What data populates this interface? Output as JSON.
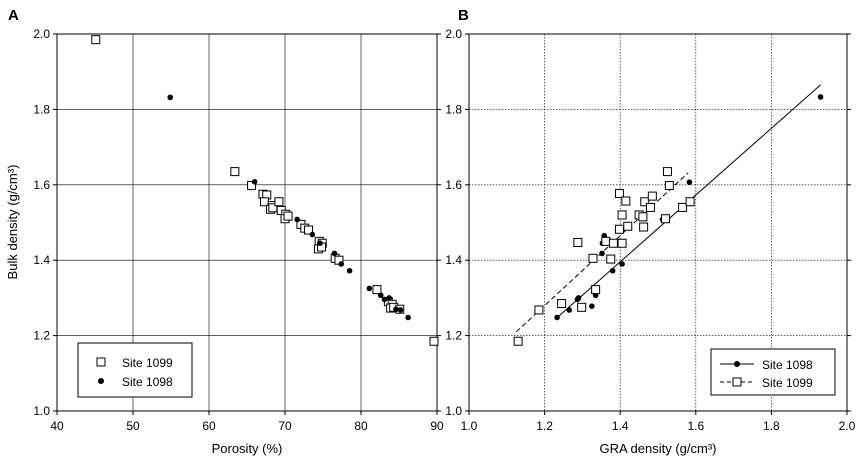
{
  "chart_data": [
    {
      "panel": "A",
      "type": "scatter",
      "xlabel": "Porosity (%)",
      "ylabel": "Bulk density (g/cm³)",
      "xlim": [
        40,
        90
      ],
      "ylim": [
        1.0,
        2.0
      ],
      "xticks": [
        "40",
        "50",
        "60",
        "70",
        "80",
        "90"
      ],
      "yticks": [
        "1.0",
        "1.2",
        "1.4",
        "1.6",
        "1.8",
        "2.0"
      ],
      "grid": true,
      "legend_position": "bottom-left",
      "series": [
        {
          "name": "Site 1099",
          "marker": "open-square",
          "points": [
            [
              45.1,
              1.985
            ],
            [
              63.4,
              1.635
            ],
            [
              65.6,
              1.598
            ],
            [
              67.1,
              1.575
            ],
            [
              67.6,
              1.573
            ],
            [
              67.3,
              1.555
            ],
            [
              68.3,
              1.545
            ],
            [
              68.1,
              1.535
            ],
            [
              68.4,
              1.539
            ],
            [
              69.2,
              1.555
            ],
            [
              69.5,
              1.532
            ],
            [
              70.1,
              1.522
            ],
            [
              70.0,
              1.51
            ],
            [
              70.4,
              1.517
            ],
            [
              72.1,
              1.495
            ],
            [
              72.6,
              1.485
            ],
            [
              73.1,
              1.48
            ],
            [
              74.5,
              1.45
            ],
            [
              74.4,
              1.43
            ],
            [
              74.9,
              1.445
            ],
            [
              74.8,
              1.435
            ],
            [
              76.6,
              1.405
            ],
            [
              77.1,
              1.4
            ],
            [
              82.1,
              1.322
            ],
            [
              83.6,
              1.29
            ],
            [
              84.1,
              1.283
            ],
            [
              83.9,
              1.273
            ],
            [
              84.3,
              1.275
            ],
            [
              85.1,
              1.27
            ],
            [
              89.6,
              1.185
            ]
          ]
        },
        {
          "name": "Site 1098",
          "marker": "filled-circle",
          "points": [
            [
              54.9,
              1.832
            ],
            [
              66.0,
              1.608
            ],
            [
              71.6,
              1.508
            ],
            [
              73.6,
              1.468
            ],
            [
              74.6,
              1.445
            ],
            [
              76.5,
              1.418
            ],
            [
              77.4,
              1.39
            ],
            [
              78.5,
              1.372
            ],
            [
              81.1,
              1.325
            ],
            [
              82.6,
              1.307
            ],
            [
              83.1,
              1.296
            ],
            [
              83.7,
              1.3
            ],
            [
              84.6,
              1.27
            ],
            [
              85.2,
              1.268
            ],
            [
              86.2,
              1.248
            ]
          ]
        }
      ]
    },
    {
      "panel": "B",
      "type": "scatter",
      "xlabel": "GRA density (g/cm³)",
      "ylabel": "",
      "xlim": [
        1.0,
        2.0
      ],
      "ylim": [
        1.0,
        2.0
      ],
      "xticks": [
        "1.0",
        "1.2",
        "1.4",
        "1.6",
        "1.8",
        "2.0"
      ],
      "yticks": [
        "1.0",
        "1.2",
        "1.4",
        "1.6",
        "1.8",
        "2.0"
      ],
      "grid": true,
      "legend_position": "bottom-right",
      "series": [
        {
          "name": "Site 1098",
          "marker": "filled-circle",
          "line_style": "solid",
          "fit_line": [
            [
              1.23,
              1.245
            ],
            [
              1.93,
              1.865
            ]
          ],
          "points": [
            [
              1.93,
              1.833
            ],
            [
              1.583,
              1.607
            ],
            [
              1.512,
              1.508
            ],
            [
              1.358,
              1.465
            ],
            [
              1.353,
              1.445
            ],
            [
              1.352,
              1.418
            ],
            [
              1.405,
              1.39
            ],
            [
              1.38,
              1.372
            ],
            [
              1.335,
              1.325
            ],
            [
              1.325,
              1.278
            ],
            [
              1.335,
              1.307
            ],
            [
              1.29,
              1.3
            ],
            [
              1.287,
              1.296
            ],
            [
              1.265,
              1.268
            ],
            [
              1.233,
              1.248
            ]
          ]
        },
        {
          "name": "Site 1099",
          "marker": "open-square",
          "line_style": "dashed",
          "fit_line": [
            [
              1.125,
              1.21
            ],
            [
              1.58,
              1.632
            ]
          ],
          "points": [
            [
              1.13,
              1.185
            ],
            [
              1.185,
              1.268
            ],
            [
              1.245,
              1.285
            ],
            [
              1.298,
              1.275
            ],
            [
              1.335,
              1.322
            ],
            [
              1.288,
              1.447
            ],
            [
              1.328,
              1.405
            ],
            [
              1.375,
              1.403
            ],
            [
              1.362,
              1.45
            ],
            [
              1.382,
              1.445
            ],
            [
              1.398,
              1.482
            ],
            [
              1.405,
              1.445
            ],
            [
              1.405,
              1.52
            ],
            [
              1.398,
              1.577
            ],
            [
              1.415,
              1.557
            ],
            [
              1.42,
              1.49
            ],
            [
              1.45,
              1.52
            ],
            [
              1.46,
              1.515
            ],
            [
              1.462,
              1.488
            ],
            [
              1.465,
              1.555
            ],
            [
              1.48,
              1.54
            ],
            [
              1.485,
              1.57
            ],
            [
              1.52,
              1.51
            ],
            [
              1.525,
              1.635
            ],
            [
              1.53,
              1.598
            ],
            [
              1.565,
              1.54
            ],
            [
              1.585,
              1.555
            ]
          ]
        }
      ]
    }
  ]
}
